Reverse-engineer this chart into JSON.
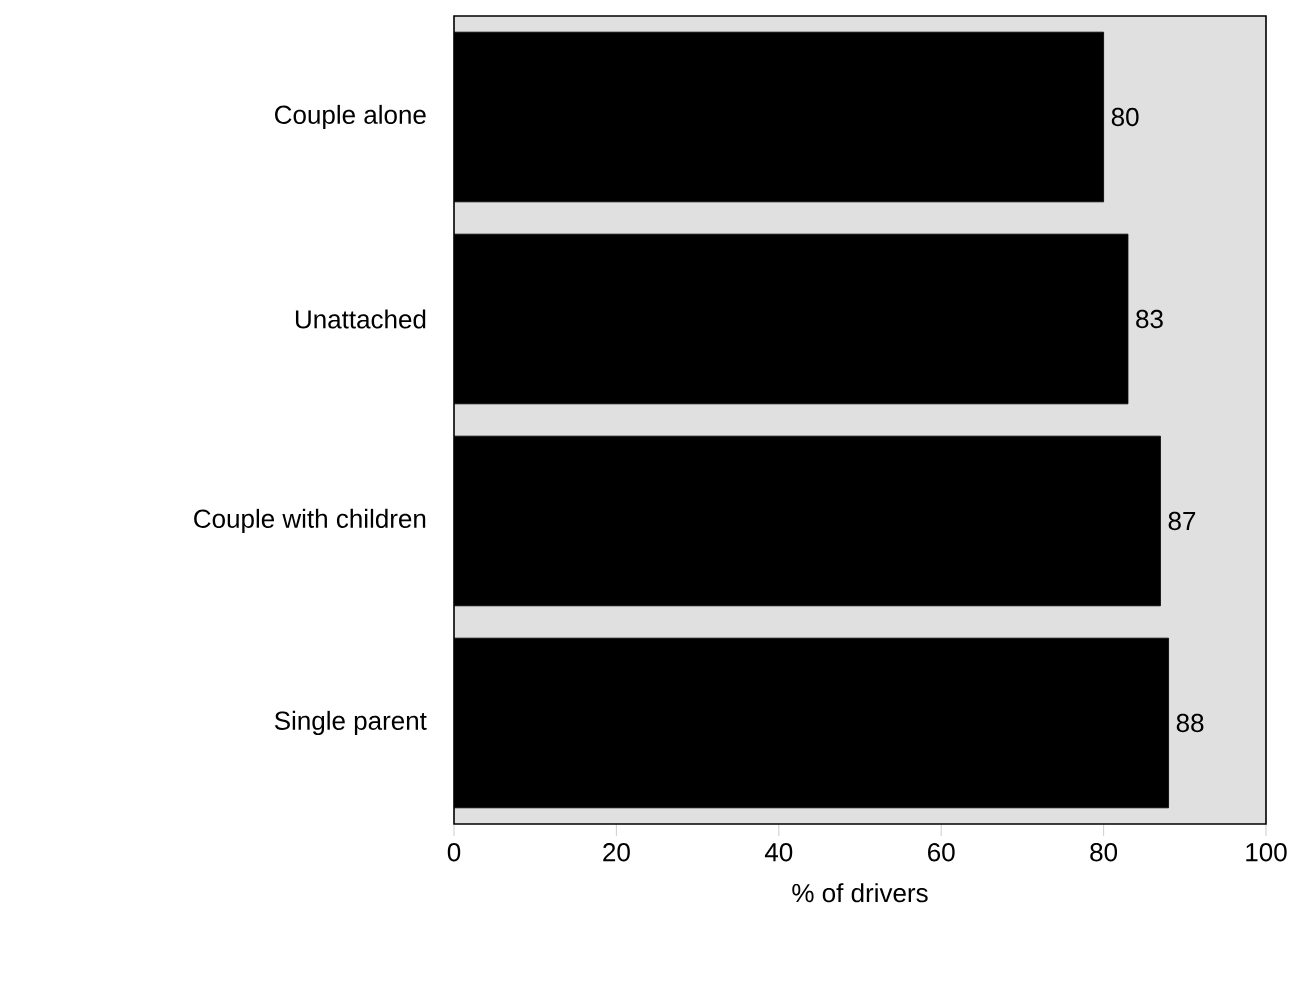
{
  "chart_data": {
    "type": "bar",
    "orientation": "horizontal",
    "xlabel": "% of drivers",
    "categories": [
      "Couple alone",
      "Unattached",
      "Couple with children",
      "Single parent"
    ],
    "values": [
      80,
      83,
      87,
      88
    ],
    "color": "#000000",
    "xlim": [
      0,
      100
    ],
    "xticks": [
      0,
      20,
      40,
      60,
      80,
      100
    ],
    "data_labels": true,
    "grid": false
  }
}
